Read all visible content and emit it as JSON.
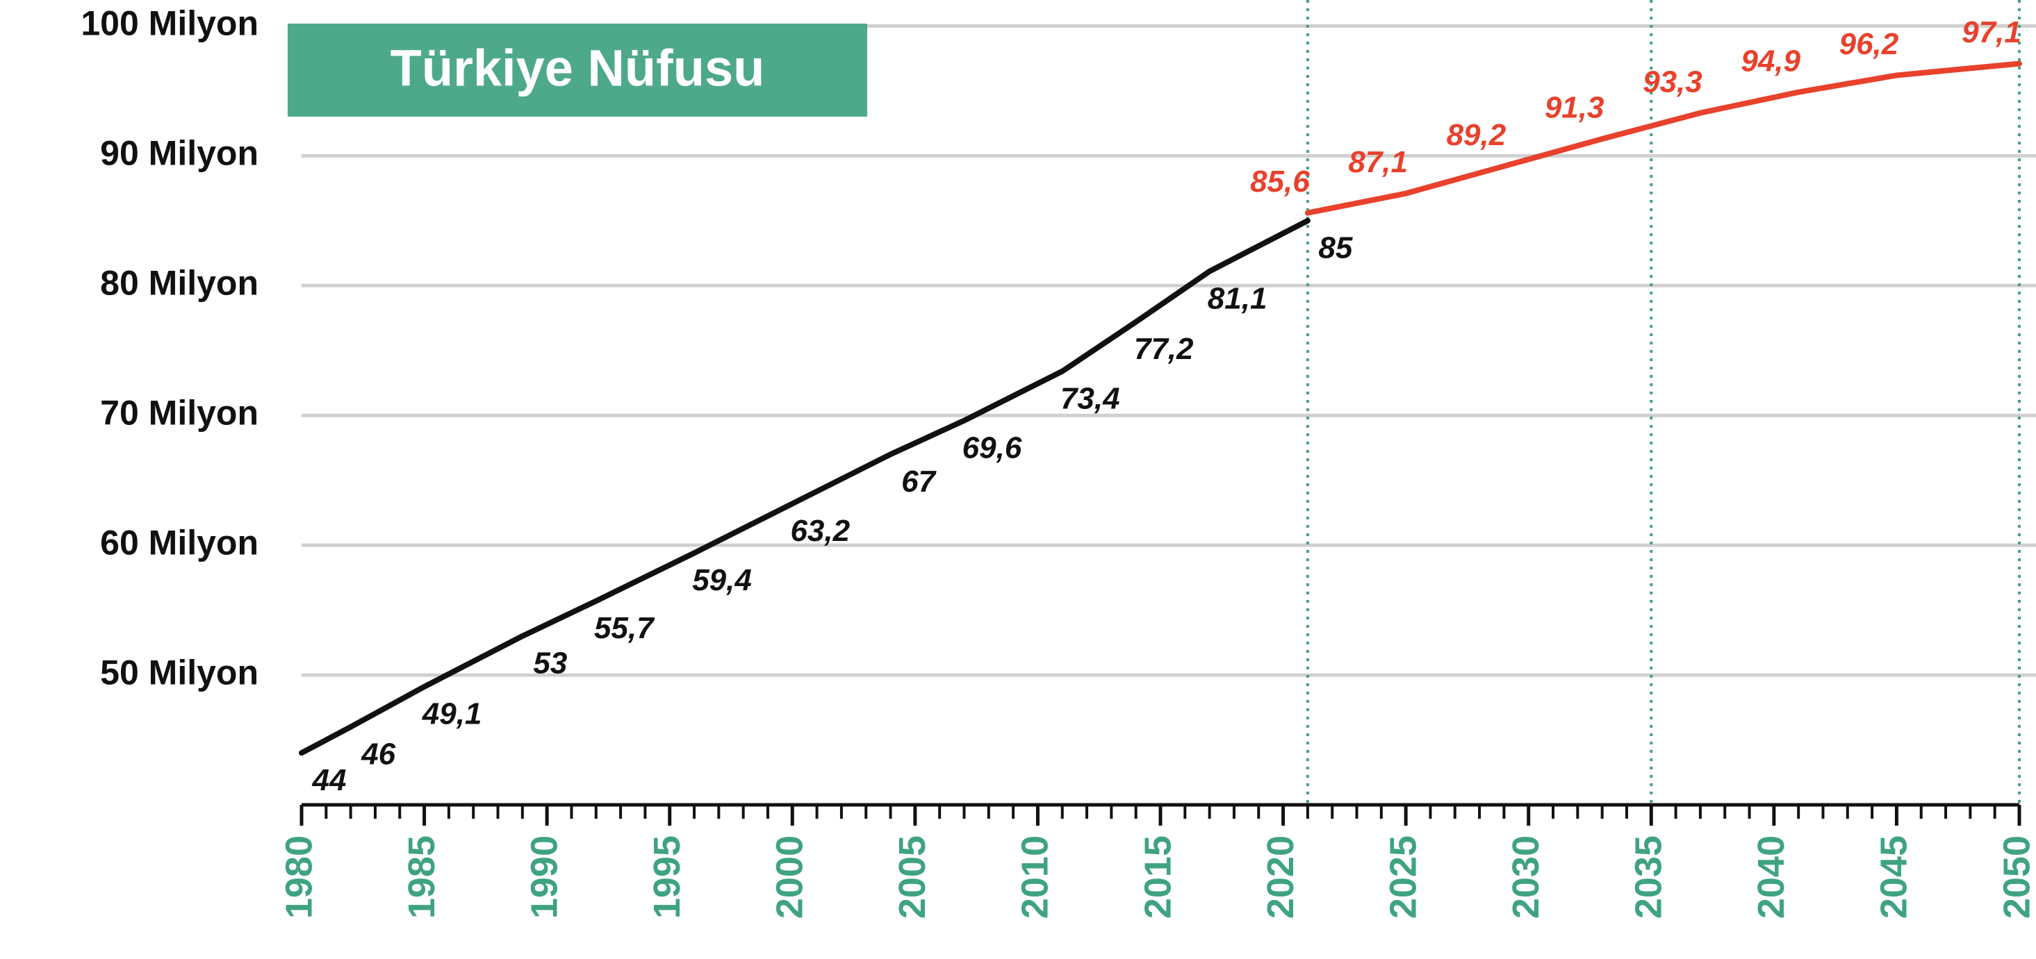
{
  "chart_data": {
    "type": "line",
    "title": "Türkiye Nüfusu",
    "xlim": [
      1980,
      2050
    ],
    "xticks": [
      1980,
      1985,
      1990,
      1995,
      2000,
      2005,
      2010,
      2015,
      2020,
      2025,
      2030,
      2035,
      2040,
      2045,
      2050
    ],
    "xminorticks": [
      1980,
      1981,
      1982,
      1983,
      1984,
      1985,
      1986,
      1987,
      1988,
      1989,
      1990,
      1991,
      1992,
      1993,
      1994,
      1995,
      1996,
      1997,
      1998,
      1999,
      2000,
      2001,
      2002,
      2003,
      2004,
      2005,
      2006,
      2007,
      2008,
      2009,
      2010,
      2011,
      2012,
      2013,
      2014,
      2015,
      2016,
      2017,
      2018,
      2019,
      2020,
      2021,
      2022,
      2023,
      2024,
      2025,
      2026,
      2027,
      2028,
      2029,
      2030,
      2031,
      2032,
      2033,
      2034,
      2035,
      2036,
      2037,
      2038,
      2039,
      2040,
      2041,
      2042,
      2043,
      2044,
      2045,
      2046,
      2047,
      2048,
      2049,
      2050
    ],
    "ylim": [
      40,
      102
    ],
    "yticks": [
      {
        "value": 50,
        "label": "50 Milyon"
      },
      {
        "value": 60,
        "label": "60 Milyon"
      },
      {
        "value": 70,
        "label": "70 Milyon"
      },
      {
        "value": 80,
        "label": "80 Milyon"
      },
      {
        "value": 90,
        "label": "90 Milyon"
      },
      {
        "value": 100,
        "label": "100 Milyon"
      }
    ],
    "grid": true,
    "reference_lines": [
      2021,
      2035,
      2050
    ],
    "series": [
      {
        "color": "#111111",
        "x": [
          1980,
          1982,
          1985,
          1989,
          1992,
          1996,
          2000,
          2004,
          2007,
          2011,
          2014,
          2017,
          2021
        ],
        "values": [
          44,
          46,
          49.1,
          53,
          55.7,
          59.4,
          63.2,
          67,
          69.6,
          73.4,
          77.2,
          81.1,
          85
        ],
        "value_labels": [
          "44",
          "46",
          "49,1",
          "53",
          "55,7",
          "59,4",
          "63,2",
          "67",
          "69,6",
          "73,4",
          "77,2",
          "81,1",
          "85"
        ]
      },
      {
        "color": "#e8412c",
        "x": [
          2021,
          2025,
          2029,
          2033,
          2037,
          2041,
          2045,
          2050
        ],
        "values": [
          85.6,
          87.1,
          89.2,
          91.3,
          93.3,
          94.9,
          96.2,
          97.1
        ],
        "value_labels": [
          "85,6",
          "87,1",
          "89,2",
          "91,3",
          "93,3",
          "94,9",
          "96,2",
          "97,1"
        ]
      }
    ]
  }
}
